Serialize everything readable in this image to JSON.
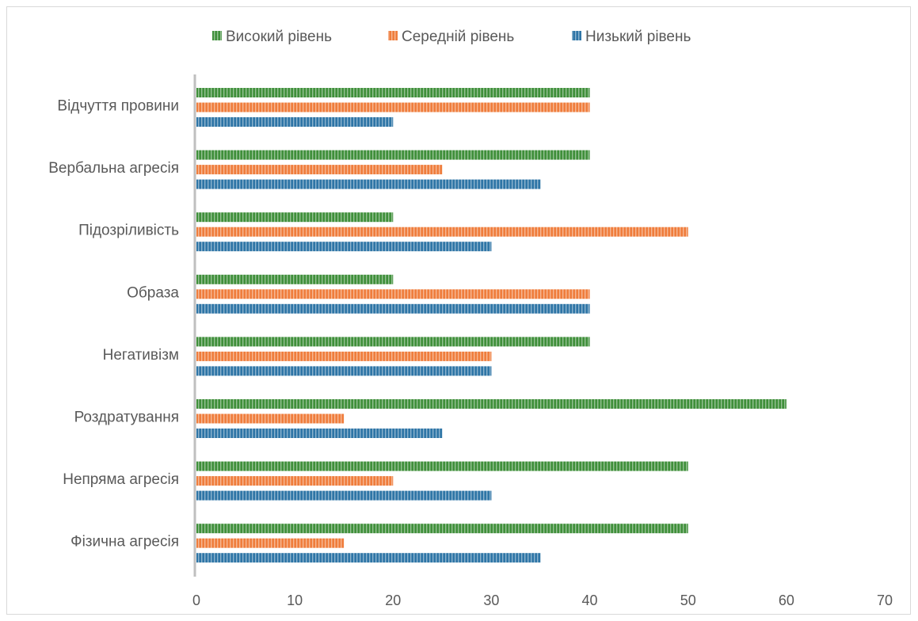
{
  "chart_data": {
    "type": "bar",
    "orientation": "horizontal",
    "categories": [
      "Відчуття провини",
      "Вербальна агресія",
      "Підозріливість",
      "Образа",
      "Негативізм",
      "Роздратування",
      "Непряма агресія",
      "Фізична агресія"
    ],
    "series": [
      {
        "name": "Високий рівень",
        "color": "#3f8f3a",
        "values": [
          40,
          40,
          20,
          20,
          40,
          60,
          50,
          50
        ]
      },
      {
        "name": "Середній рівень",
        "color": "#ef7d3c",
        "values": [
          40,
          25,
          50,
          40,
          30,
          15,
          20,
          15
        ]
      },
      {
        "name": "Низький рівень",
        "color": "#2e75a6",
        "values": [
          20,
          35,
          30,
          40,
          30,
          25,
          30,
          35
        ]
      }
    ],
    "xlim": [
      0,
      70
    ],
    "xticks": [
      "0",
      "10",
      "20",
      "30",
      "40",
      "50",
      "60",
      "70"
    ],
    "legend": "top",
    "grid": false,
    "title": "",
    "xlabel": "",
    "ylabel": ""
  }
}
